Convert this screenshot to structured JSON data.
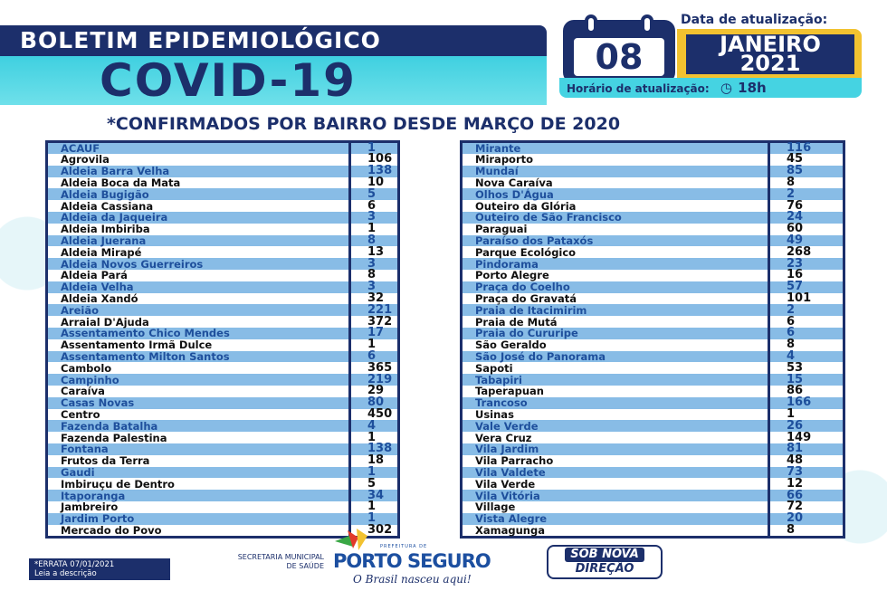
{
  "header": {
    "line1": "BOLETIM EPIDEMIOLÓGICO",
    "line2": "COVID-19",
    "date_label": "Data de atualização:",
    "day": "08",
    "month": "JANEIRO",
    "year": "2021",
    "time_label": "Horário de atualização:",
    "time": "18h",
    "time_icon": "clock-icon"
  },
  "subtitle": "*CONFIRMADOS POR BAIRRO DESDE MARÇO DE 2020",
  "colors": {
    "navy": "#1c2f6b",
    "cyan": "#45d3e2",
    "yellow": "#f2c230",
    "row_blue": "#88bce6"
  },
  "left_table": [
    [
      "ACAUF",
      "1"
    ],
    [
      "Agrovila",
      "106"
    ],
    [
      "Aldeia Barra Velha",
      "138"
    ],
    [
      "Aldeia Boca da Mata",
      "10"
    ],
    [
      "Aldeia Bugigão",
      "5"
    ],
    [
      "Aldeia Cassiana",
      "6"
    ],
    [
      "Aldeia da Jaqueira",
      "3"
    ],
    [
      "Aldeia Imbiriba",
      "1"
    ],
    [
      "Aldeia Juerana",
      "8"
    ],
    [
      "Aldeia Mirapé",
      "13"
    ],
    [
      "Aldeia Novos Guerreiros",
      "3"
    ],
    [
      "Aldeia Pará",
      "8"
    ],
    [
      "Aldeia Velha",
      "3"
    ],
    [
      "Aldeia Xandó",
      "32"
    ],
    [
      "Areião",
      "221"
    ],
    [
      "Arraial D'Ajuda",
      "372"
    ],
    [
      "Assentamento Chico Mendes",
      "17"
    ],
    [
      "Assentamento Irmã Dulce",
      "1"
    ],
    [
      "Assentamento Milton Santos",
      "6"
    ],
    [
      "Cambolo",
      "365"
    ],
    [
      "Campinho",
      "219"
    ],
    [
      "Caraíva",
      "29"
    ],
    [
      "Casas Novas",
      "80"
    ],
    [
      "Centro",
      "450"
    ],
    [
      "Fazenda Batalha",
      "4"
    ],
    [
      "Fazenda Palestina",
      "1"
    ],
    [
      "Fontana",
      "138"
    ],
    [
      "Frutos da Terra",
      "18"
    ],
    [
      "Gaudi",
      "1"
    ],
    [
      "Imbiruçu de Dentro",
      "5"
    ],
    [
      "Itaporanga",
      "34"
    ],
    [
      "Jambreiro",
      "1"
    ],
    [
      "Jardim Porto",
      "1"
    ],
    [
      "Mercado do Povo",
      "302"
    ]
  ],
  "right_table": [
    [
      "Mirante",
      "116"
    ],
    [
      "Miraporto",
      "45"
    ],
    [
      "Mundaí",
      "85"
    ],
    [
      "Nova Caraíva",
      "8"
    ],
    [
      "Olhos D'Água",
      "2"
    ],
    [
      "Outeiro da Glória",
      "76"
    ],
    [
      "Outeiro de São Francisco",
      "24"
    ],
    [
      "Paraguai",
      "60"
    ],
    [
      "Paraíso dos Pataxós",
      "49"
    ],
    [
      "Parque Ecológico",
      "268"
    ],
    [
      "Pindorama",
      "23"
    ],
    [
      "Porto Alegre",
      "16"
    ],
    [
      "Praça do Coelho",
      "57"
    ],
    [
      "Praça do Gravatá",
      "101"
    ],
    [
      "Praia de Itacimirim",
      "2"
    ],
    [
      "Praia de Mutá",
      "6"
    ],
    [
      "Praia do Cururipe",
      "6"
    ],
    [
      "São Geraldo",
      "8"
    ],
    [
      "São José do Panorama",
      "4"
    ],
    [
      "Sapoti",
      "53"
    ],
    [
      "Tabapiri",
      "15"
    ],
    [
      "Taperapuan",
      "86"
    ],
    [
      "Trancoso",
      "166"
    ],
    [
      "Usinas",
      "1"
    ],
    [
      "Vale Verde",
      "26"
    ],
    [
      "Vera Cruz",
      "149"
    ],
    [
      "Vila Jardim",
      "81"
    ],
    [
      "Vila Parracho",
      "48"
    ],
    [
      "Vila Valdete",
      "73"
    ],
    [
      "Vila Verde",
      "12"
    ],
    [
      "Vila Vitória",
      "66"
    ],
    [
      "Village",
      "72"
    ],
    [
      "Vista Alegre",
      "20"
    ],
    [
      "Xamagunga",
      "8"
    ]
  ],
  "footer": {
    "errata_line1": "*ERRATA 07/01/2021",
    "errata_line2": "Leia a descrição",
    "secretaria_line1": "SECRETARIA MUNICIPAL",
    "secretaria_line2": "DE SAÚDE",
    "prefeitura": "PREFEITURA DE",
    "city": "PORTO SEGURO",
    "slogan": "O Brasil nasceu aqui!",
    "badge_line1": "SOB NOVA",
    "badge_line2": "DIREÇÃO"
  }
}
